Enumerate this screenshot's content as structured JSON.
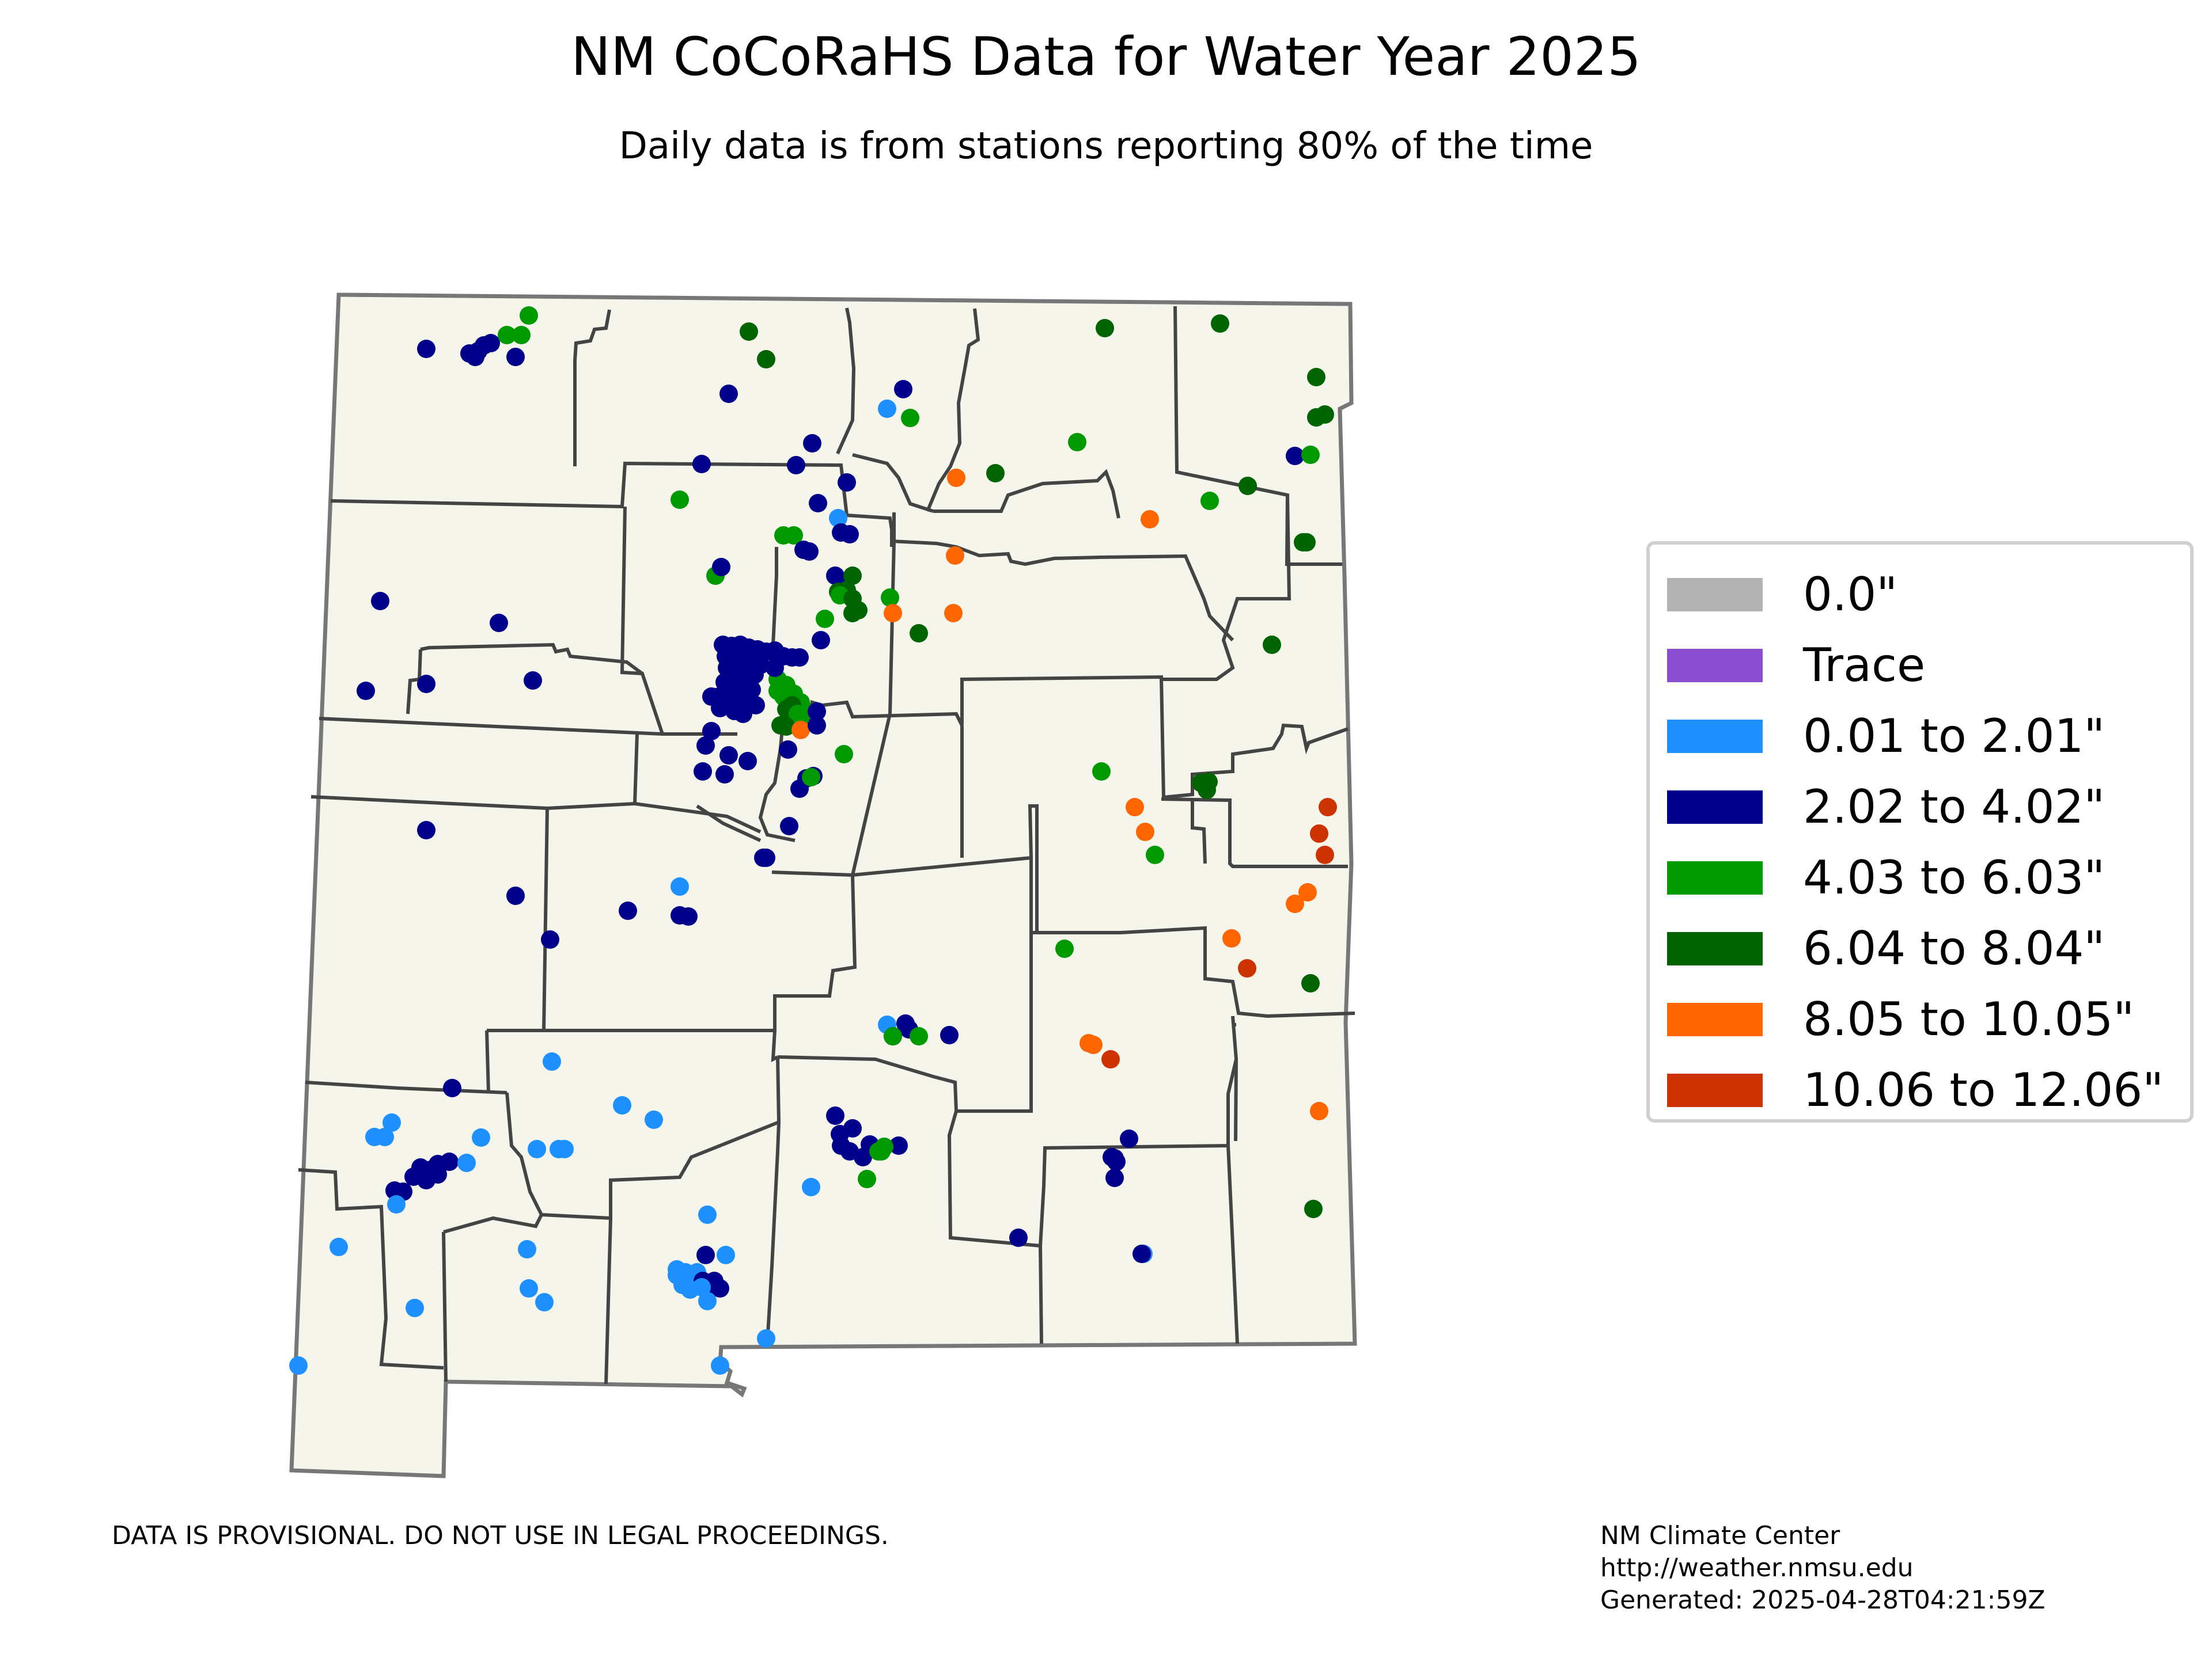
{
  "title": "NM CoCoRaHS Data for Water Year 2025",
  "subtitle": "Daily data is from stations reporting 80% of the time",
  "legend": [
    {
      "label": "0.0\"",
      "color": "#b3b3b3"
    },
    {
      "label": "Trace",
      "color": "#8a4fd1"
    },
    {
      "label": "0.01 to 2.01\"",
      "color": "#1e90ff"
    },
    {
      "label": "2.02 to 4.02\"",
      "color": "#00008b"
    },
    {
      "label": "4.03 to 6.03\"",
      "color": "#009900"
    },
    {
      "label": "6.04 to 8.04\"",
      "color": "#006400"
    },
    {
      "label": "8.05 to 10.05\"",
      "color": "#ff6600"
    },
    {
      "label": "10.06 to 12.06\"",
      "color": "#cc3300"
    }
  ],
  "map_style": {
    "land": "#f5f5ec",
    "county_line": "#444444",
    "state_line": "#777777"
  },
  "disclaimer": "DATA IS PROVISIONAL. DO NOT USE IN LEGAL PROCEEDINGS.",
  "credits": {
    "org": "NM Climate Center",
    "url": "http://weather.nmsu.edu",
    "generated": "Generated: 2025-04-28T04:21:59Z"
  }
}
